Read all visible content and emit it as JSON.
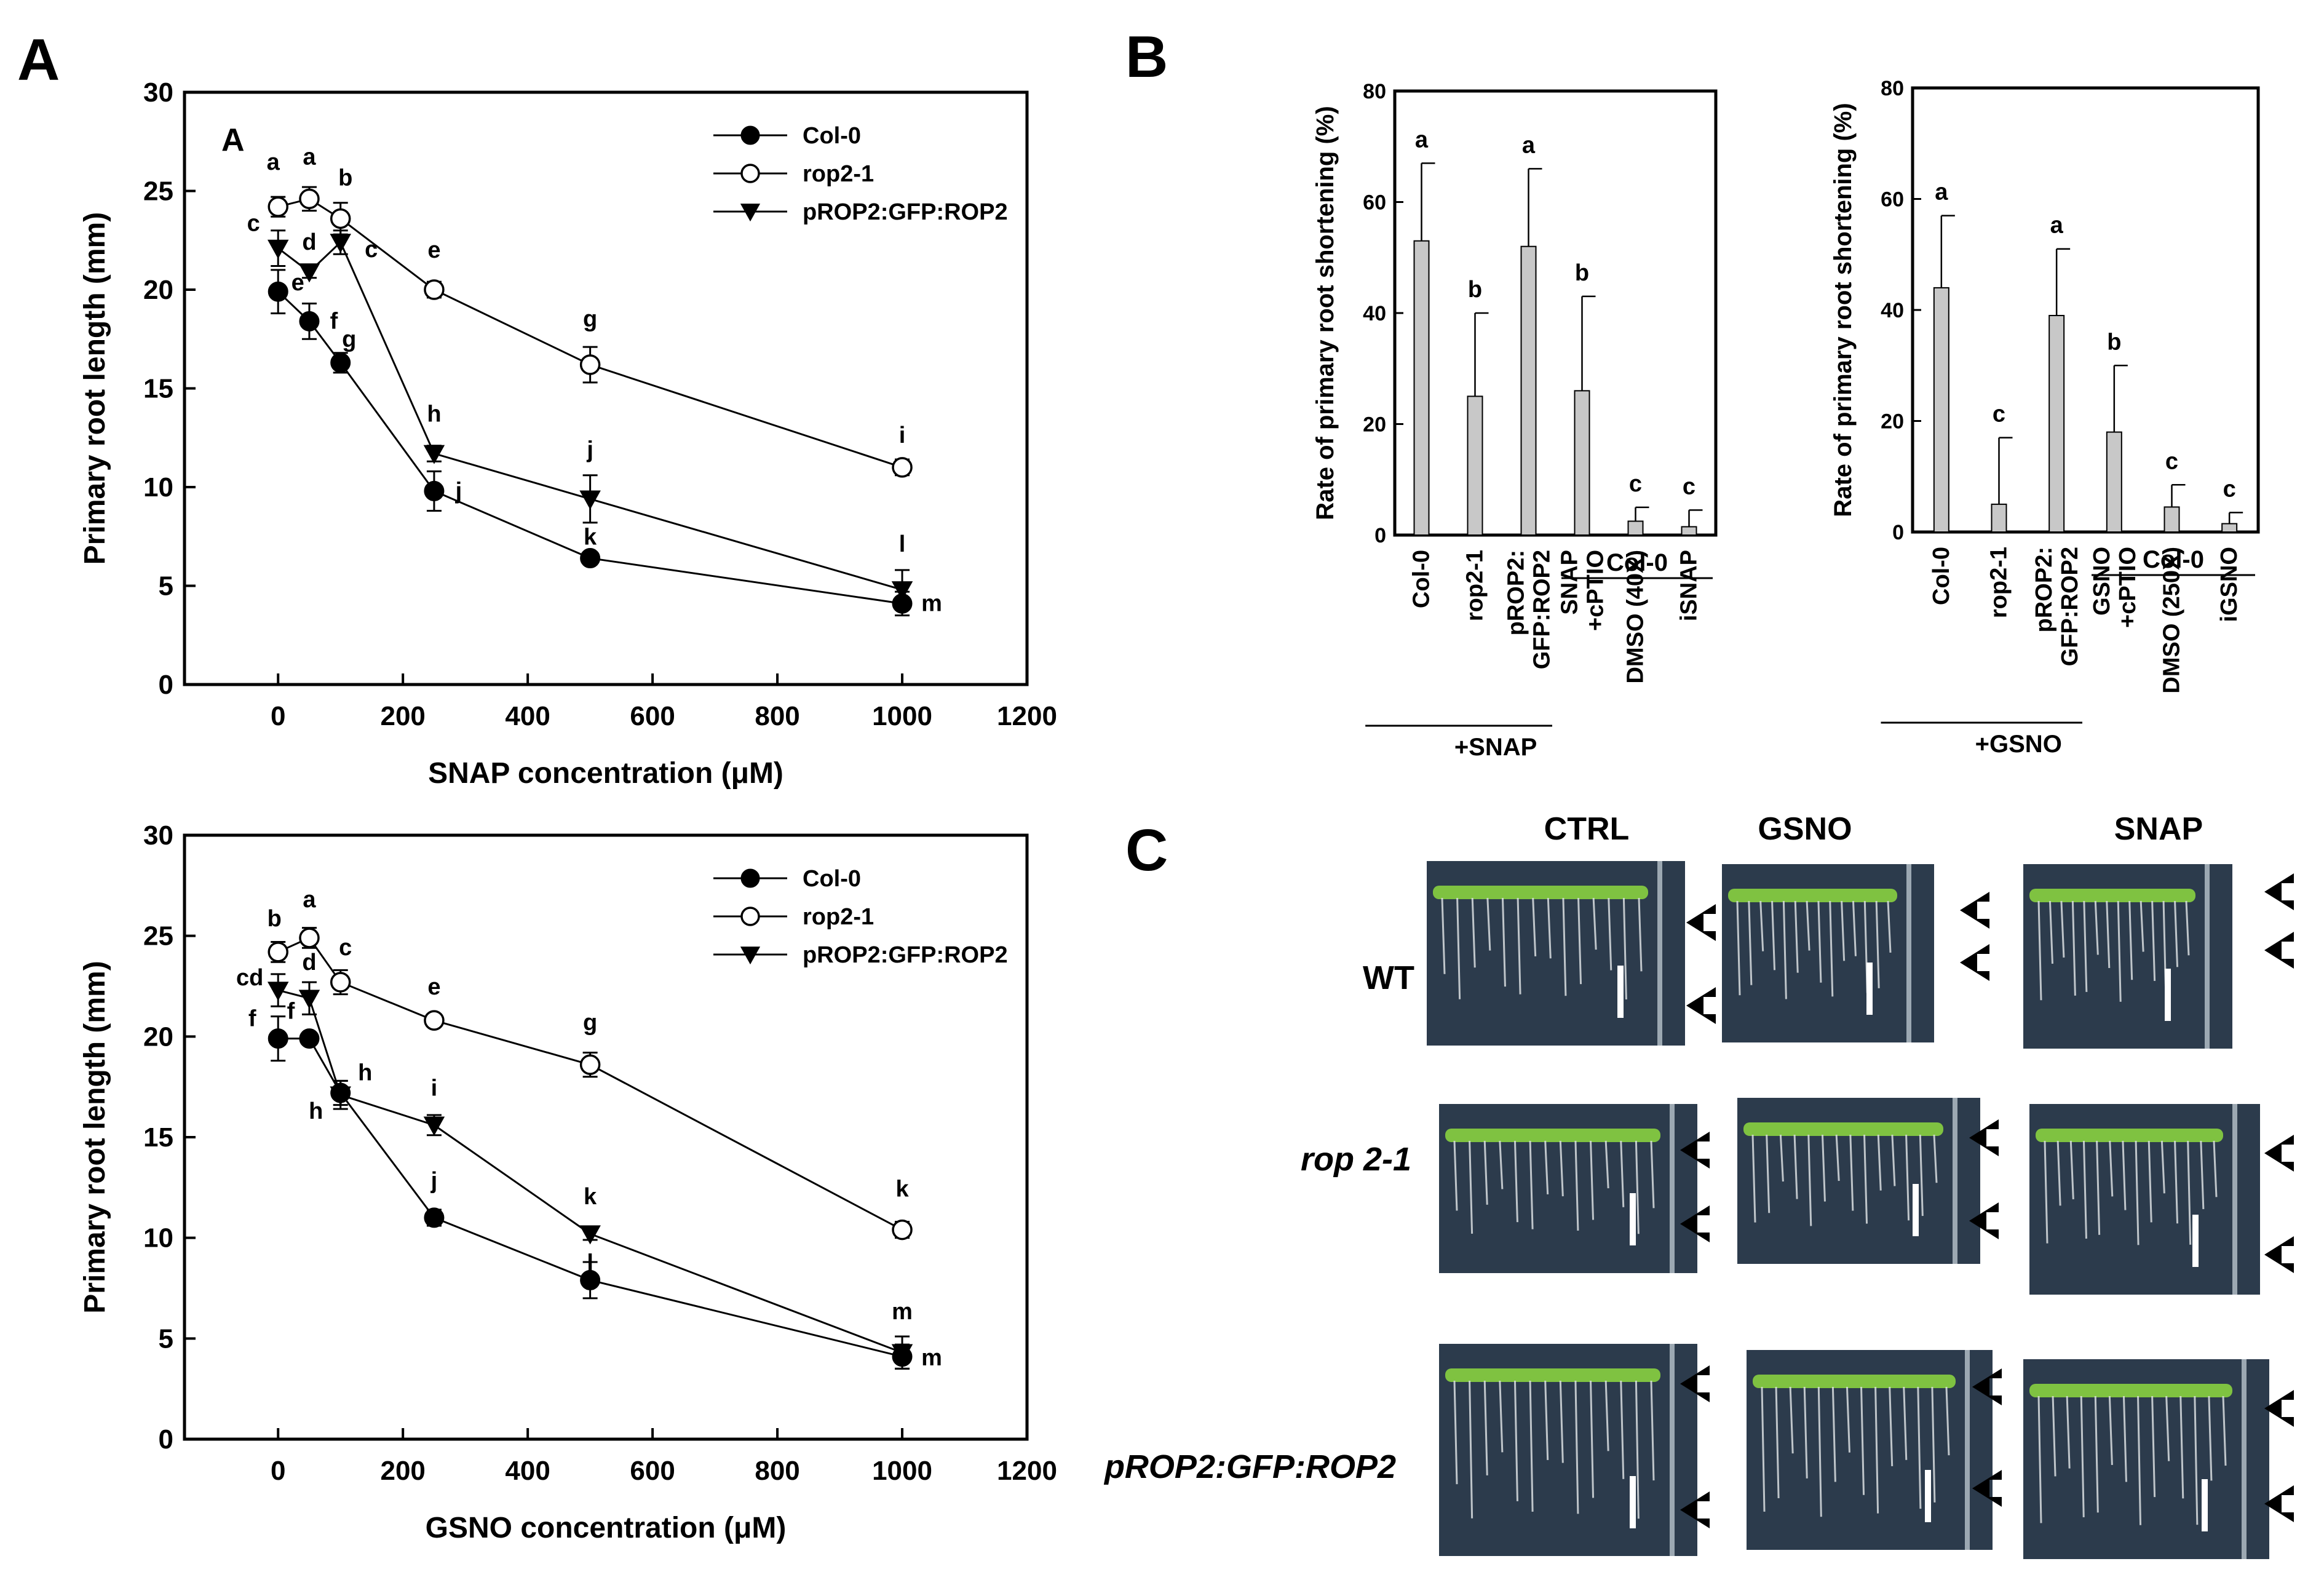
{
  "panel_labels": {
    "A": "A",
    "B": "B",
    "C": "C"
  },
  "chart_data": [
    {
      "id": "A-top",
      "type": "line",
      "inner_label": "A",
      "xlabel": "SNAP concentration (μM)",
      "ylabel": "Primary root length (mm)",
      "xlim": [
        -150,
        1200
      ],
      "ylim": [
        0,
        30
      ],
      "xticks": [
        0,
        200,
        400,
        600,
        800,
        1000,
        1200
      ],
      "yticks": [
        0,
        5,
        10,
        15,
        20,
        25,
        30
      ],
      "x": [
        0,
        50,
        100,
        250,
        500,
        1000
      ],
      "legend_position": "top-right",
      "series": [
        {
          "name": "Col-0",
          "marker": "filled-circle",
          "values": [
            19.9,
            18.4,
            16.3,
            9.8,
            6.4,
            4.1
          ],
          "errors": [
            1.1,
            0.9,
            0.5,
            1.0,
            0.2,
            0.6
          ],
          "letters": [
            "e",
            "f",
            "g",
            "j",
            "k",
            "m"
          ]
        },
        {
          "name": "rop2-1",
          "marker": "open-circle",
          "values": [
            24.2,
            24.6,
            23.6,
            20.0,
            16.2,
            11.0
          ],
          "errors": [
            0.5,
            0.6,
            0.8,
            0.4,
            0.9,
            0.4
          ],
          "letters": [
            "a",
            "a",
            "b",
            "e",
            "g",
            "i"
          ]
        },
        {
          "name": "pROP2:GFP:ROP2",
          "marker": "filled-triangle-down",
          "values": [
            22.1,
            20.9,
            22.4,
            11.7,
            9.4,
            4.8
          ],
          "errors": [
            0.9,
            0.3,
            0.6,
            0.4,
            1.2,
            1.0
          ],
          "letters": [
            "c",
            "d",
            "c",
            "h",
            "j",
            "l"
          ]
        }
      ]
    },
    {
      "id": "A-bottom",
      "type": "line",
      "xlabel": "GSNO concentration (μM)",
      "ylabel": "Primary root length (mm)",
      "xlim": [
        -150,
        1200
      ],
      "ylim": [
        0,
        30
      ],
      "xticks": [
        0,
        200,
        400,
        600,
        800,
        1000,
        1200
      ],
      "yticks": [
        0,
        5,
        10,
        15,
        20,
        25,
        30
      ],
      "x": [
        0,
        50,
        100,
        250,
        500,
        1000
      ],
      "legend_position": "top-right",
      "series": [
        {
          "name": "Col-0",
          "marker": "filled-circle",
          "values": [
            19.9,
            19.9,
            17.2,
            11.0,
            7.9,
            4.1
          ],
          "errors": [
            1.1,
            0.3,
            0.6,
            0.4,
            0.9,
            0.6
          ],
          "letters": [
            "f",
            "f",
            "h",
            "j",
            "l",
            "m"
          ]
        },
        {
          "name": "rop2-1",
          "marker": "open-circle",
          "values": [
            24.2,
            24.9,
            22.7,
            20.8,
            18.6,
            10.4
          ],
          "errors": [
            0.5,
            0.5,
            0.6,
            0.3,
            0.6,
            0.4
          ],
          "letters": [
            "b",
            "a",
            "c",
            "e",
            "g",
            "k"
          ]
        },
        {
          "name": "pROP2:GFP:ROP2",
          "marker": "filled-triangle-down",
          "values": [
            22.3,
            21.9,
            17.1,
            15.6,
            10.2,
            4.3
          ],
          "errors": [
            0.8,
            0.8,
            0.7,
            0.5,
            0.3,
            0.8
          ],
          "letters": [
            "cd",
            "d",
            "h",
            "i",
            "k",
            "m"
          ]
        }
      ]
    },
    {
      "id": "B-SNAP",
      "type": "bar",
      "ylabel": "Rate of primary root shortening (%)",
      "ylim": [
        0,
        80
      ],
      "yticks": [
        0,
        20,
        40,
        60,
        80
      ],
      "categories": [
        "Col-0",
        "rop2-1",
        "pROP2:\nGFP:ROP2",
        "SNAP\n+cPTIO",
        "DMSO (40X)",
        "iSNAP"
      ],
      "values": [
        53,
        25,
        52,
        26,
        2.5,
        1.5
      ],
      "errors": [
        14,
        15,
        14,
        17,
        2.5,
        3
      ],
      "letters": [
        "a",
        "b",
        "a",
        "b",
        "c",
        "c"
      ],
      "group_labels": [
        {
          "label": "+SNAP",
          "from": 0,
          "to": 3
        },
        {
          "label": "Col-0",
          "from": 3,
          "to": 5
        }
      ],
      "bar_color": "#c8c8c8"
    },
    {
      "id": "B-GSNO",
      "type": "bar",
      "ylabel": "Rate of primary root shortening (%)",
      "ylim": [
        0,
        80
      ],
      "yticks": [
        0,
        20,
        40,
        60,
        80
      ],
      "categories": [
        "Col-0",
        "rop2-1",
        "pROP2:\nGFP:ROP2",
        "GSNO\n+cPTIO",
        "DMSO (250X)",
        "iGSNO"
      ],
      "values": [
        44,
        5,
        39,
        18,
        4.5,
        1.5
      ],
      "errors": [
        13,
        12,
        12,
        12,
        4,
        2
      ],
      "letters": [
        "a",
        "c",
        "a",
        "b",
        "c",
        "c"
      ],
      "group_labels": [
        {
          "label": "+GSNO",
          "from": 0,
          "to": 3
        },
        {
          "label": "Col-0",
          "from": 3,
          "to": 5
        }
      ],
      "bar_color": "#c8c8c8"
    }
  ],
  "photo_grid": {
    "columns": [
      "CTRL",
      "GSNO",
      "SNAP"
    ],
    "rows": [
      "WT",
      "rop 2-1",
      "pROP2:GFP:ROP2"
    ],
    "plate_color": "#2c3b4c",
    "seedling_color": "#7fc241"
  }
}
